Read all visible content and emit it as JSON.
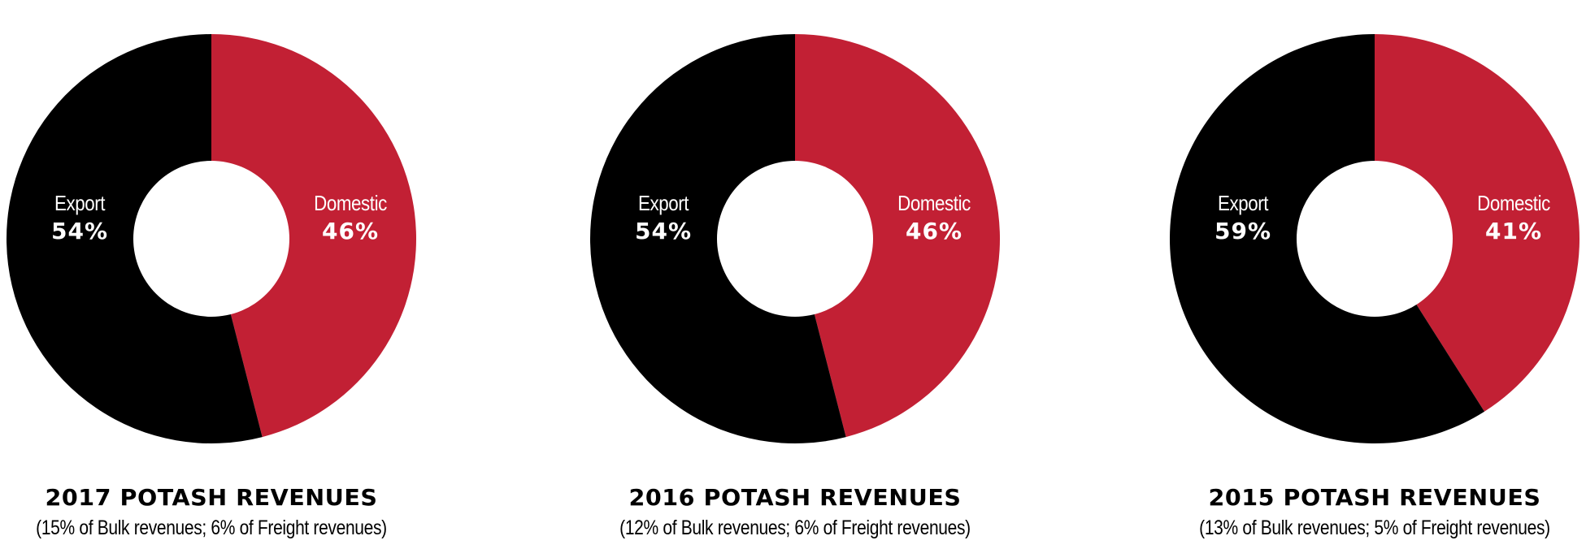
{
  "colors": {
    "domestic": "#C22034",
    "export": "#000000",
    "hole": "#FFFFFF"
  },
  "charts": [
    {
      "title": "2017 POTASH REVENUES",
      "subtitle": "(15% of Bulk revenues; 6% of Freight revenues)",
      "segments": [
        {
          "name": "Export",
          "pct_label": "54%",
          "value": 54
        },
        {
          "name": "Domestic",
          "pct_label": "46%",
          "value": 46
        }
      ]
    },
    {
      "title": "2016 POTASH REVENUES",
      "subtitle": "(12% of Bulk revenues; 6% of Freight revenues)",
      "segments": [
        {
          "name": "Export",
          "pct_label": "54%",
          "value": 54
        },
        {
          "name": "Domestic",
          "pct_label": "46%",
          "value": 46
        }
      ]
    },
    {
      "title": "2015 POTASH REVENUES",
      "subtitle": "(13% of Bulk revenues; 5% of Freight revenues)",
      "segments": [
        {
          "name": "Export",
          "pct_label": "59%",
          "value": 59
        },
        {
          "name": "Domestic",
          "pct_label": "41%",
          "value": 41
        }
      ]
    }
  ],
  "chart_data": [
    {
      "type": "pie",
      "title": "2017 POTASH REVENUES",
      "subtitle": "(15% of Bulk revenues; 6% of Freight revenues)",
      "categories": [
        "Domestic",
        "Export"
      ],
      "values": [
        46,
        54
      ],
      "colors": [
        "#C22034",
        "#000000"
      ],
      "donut": true,
      "legend": "none (labels inside segments)"
    },
    {
      "type": "pie",
      "title": "2016 POTASH REVENUES",
      "subtitle": "(12% of Bulk revenues; 6% of Freight revenues)",
      "categories": [
        "Domestic",
        "Export"
      ],
      "values": [
        46,
        54
      ],
      "colors": [
        "#C22034",
        "#000000"
      ],
      "donut": true,
      "legend": "none (labels inside segments)"
    },
    {
      "type": "pie",
      "title": "2015 POTASH REVENUES",
      "subtitle": "(13% of Bulk revenues; 5% of Freight revenues)",
      "categories": [
        "Domestic",
        "Export"
      ],
      "values": [
        41,
        59
      ],
      "colors": [
        "#C22034",
        "#000000"
      ],
      "donut": true,
      "legend": "none (labels inside segments)"
    }
  ]
}
